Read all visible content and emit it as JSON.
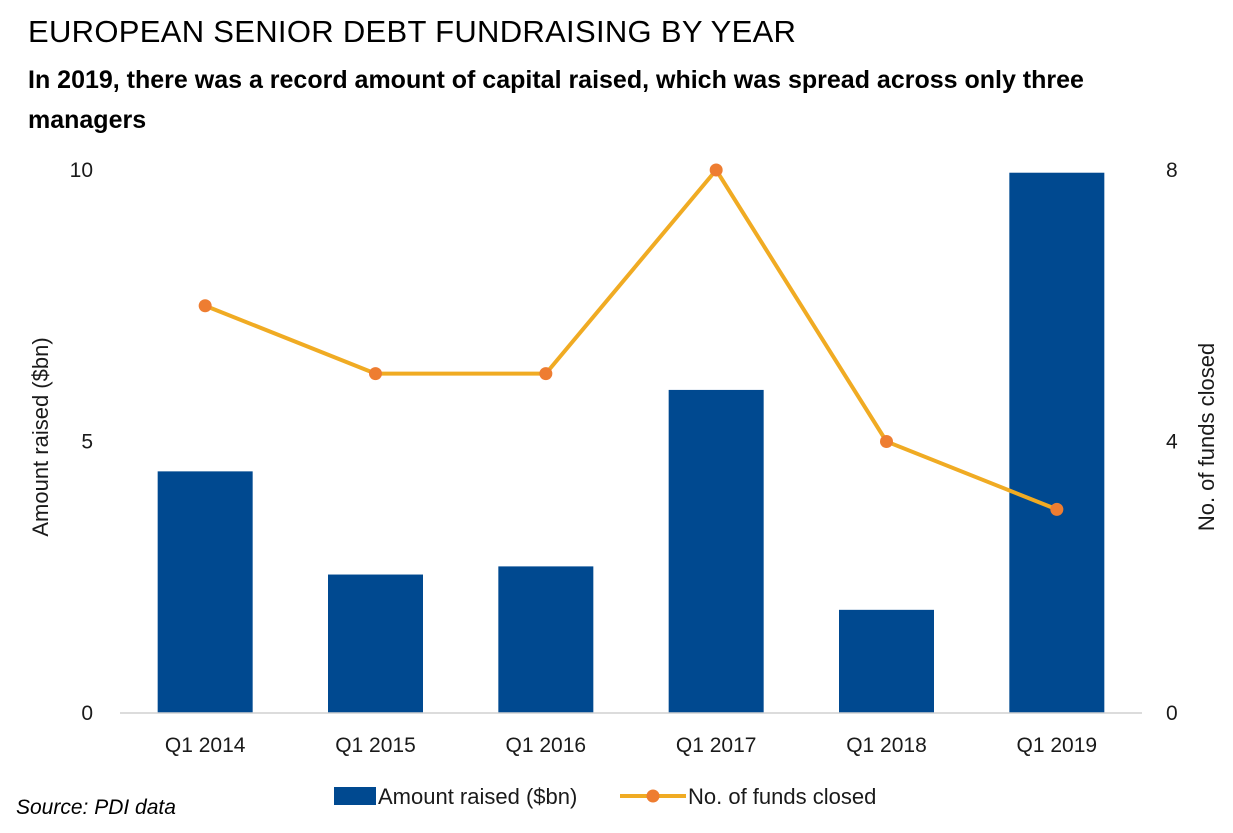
{
  "title": "EUROPEAN SENIOR DEBT FUNDRAISING BY YEAR",
  "subtitle": "In 2019, there was a record amount of capital raised, which was spread across only three managers",
  "source": "Source: PDI data",
  "colors": {
    "bar": "#004990",
    "line": "#F0AB23",
    "marker": "#EE7D31"
  },
  "chart_data": {
    "type": "bar",
    "categories": [
      "Q1 2014",
      "Q1 2015",
      "Q1 2016",
      "Q1 2017",
      "Q1 2018",
      "Q1 2019"
    ],
    "series": [
      {
        "name": "Amount raised ($bn)",
        "type": "bar",
        "axis": "left",
        "values": [
          4.45,
          2.55,
          2.7,
          5.95,
          1.9,
          9.95
        ]
      },
      {
        "name": "No. of funds closed",
        "type": "line",
        "axis": "right",
        "values": [
          6,
          5,
          5,
          8,
          4,
          3
        ]
      }
    ],
    "ylabel": "Amount raised ($bn)",
    "y2label": "No. of funds closed",
    "ylim": [
      0,
      10
    ],
    "y2lim": [
      0,
      8
    ],
    "yticks": [
      0,
      5,
      10
    ],
    "y2ticks": [
      0,
      4,
      8
    ],
    "grid": false,
    "legend": "bottom"
  }
}
